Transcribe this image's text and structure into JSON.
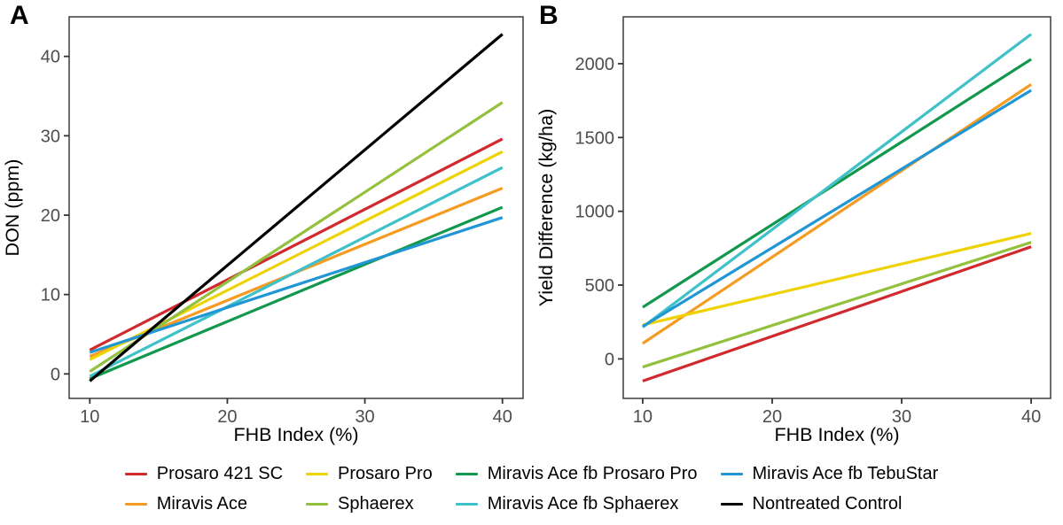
{
  "chart_data": [
    {
      "type": "line",
      "panel_label": "A",
      "title": "",
      "xlabel": "FHB Index (%)",
      "ylabel": "DON (ppm)",
      "x": [
        10,
        40
      ],
      "xticks": [
        10,
        20,
        30,
        40
      ],
      "yticks": [
        0,
        10,
        20,
        30,
        40
      ],
      "xlim": [
        10,
        40
      ],
      "ylim": [
        -0.9,
        42.8
      ],
      "grid": false,
      "series": [
        {
          "name": "Prosaro 421 SC",
          "color": "#d0292e",
          "values": [
            3.0,
            29.6
          ]
        },
        {
          "name": "Miravis Ace",
          "color": "#f59b22",
          "values": [
            2.2,
            23.4
          ]
        },
        {
          "name": "Prosaro Pro",
          "color": "#eed202",
          "values": [
            1.8,
            28.0
          ]
        },
        {
          "name": "Sphaerex",
          "color": "#93c13d",
          "values": [
            0.3,
            34.2
          ]
        },
        {
          "name": "Miravis Ace fb Prosaro Pro",
          "color": "#12984d",
          "values": [
            -0.6,
            21.0
          ]
        },
        {
          "name": "Miravis Ace fb Sphaerex",
          "color": "#3fc1c9",
          "values": [
            -0.3,
            26.0
          ]
        },
        {
          "name": "Miravis Ace fb TebuStar",
          "color": "#2097d4",
          "values": [
            2.7,
            19.7
          ]
        },
        {
          "name": "Nontreated Control",
          "color": "#000000",
          "values": [
            -0.9,
            42.8
          ]
        }
      ]
    },
    {
      "type": "line",
      "panel_label": "B",
      "title": "",
      "xlabel": "FHB Index (%)",
      "ylabel": "Yield Difference (kg/ha)",
      "x": [
        10,
        40
      ],
      "xticks": [
        10,
        20,
        30,
        40
      ],
      "yticks": [
        0,
        500,
        1000,
        1500,
        2000
      ],
      "xlim": [
        10,
        40
      ],
      "ylim": [
        -150,
        2200
      ],
      "grid": false,
      "series": [
        {
          "name": "Prosaro 421 SC",
          "color": "#d0292e",
          "values": [
            -150,
            760
          ]
        },
        {
          "name": "Miravis Ace",
          "color": "#f59b22",
          "values": [
            105,
            1860
          ]
        },
        {
          "name": "Prosaro Pro",
          "color": "#eed202",
          "values": [
            230,
            850
          ]
        },
        {
          "name": "Sphaerex",
          "color": "#93c13d",
          "values": [
            -55,
            790
          ]
        },
        {
          "name": "Miravis Ace fb Prosaro Pro",
          "color": "#12984d",
          "values": [
            350,
            2030
          ]
        },
        {
          "name": "Miravis Ace fb Sphaerex",
          "color": "#3fc1c9",
          "values": [
            215,
            2200
          ]
        },
        {
          "name": "Miravis Ace fb TebuStar",
          "color": "#2097d4",
          "values": [
            220,
            1820
          ]
        }
      ]
    }
  ],
  "legend": {
    "position": "bottom",
    "items": [
      {
        "label": "Prosaro 421 SC",
        "color": "#d0292e"
      },
      {
        "label": "Miravis Ace",
        "color": "#f59b22"
      },
      {
        "label": "Prosaro Pro",
        "color": "#eed202"
      },
      {
        "label": "Sphaerex",
        "color": "#93c13d"
      },
      {
        "label": "Miravis Ace fb Prosaro Pro",
        "color": "#12984d"
      },
      {
        "label": "Miravis Ace fb Sphaerex",
        "color": "#3fc1c9"
      },
      {
        "label": "Miravis Ace fb TebuStar",
        "color": "#2097d4"
      },
      {
        "label": "Nontreated Control",
        "color": "#000000"
      }
    ]
  },
  "colors": {
    "axis_text": "#4d4d4d",
    "axis_title": "#000000",
    "panel_border": "#3d3d3d",
    "tick_mark": "#333333",
    "background": "#ffffff"
  }
}
